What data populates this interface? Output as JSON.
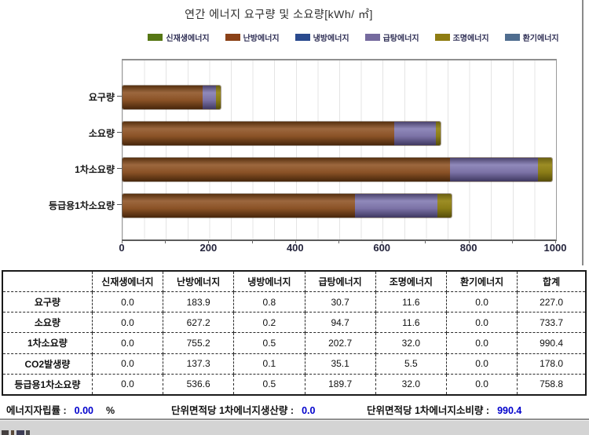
{
  "chart_data": {
    "type": "bar",
    "orientation": "horizontal",
    "title": "연간 에너지 요구량 및 소요량[kWh/ ㎡]",
    "categories": [
      "요구량",
      "소요량",
      "1차소요량",
      "등급용1차소요량"
    ],
    "series": [
      {
        "name": "신재생에너지",
        "color": "#567714",
        "values": [
          0.0,
          0.0,
          0.0,
          0.0
        ]
      },
      {
        "name": "난방에너지",
        "color": "#8b4117",
        "values": [
          183.9,
          627.2,
          755.2,
          536.6
        ]
      },
      {
        "name": "냉방에너지",
        "color": "#2a4a8e",
        "values": [
          0.8,
          0.2,
          0.5,
          0.5
        ]
      },
      {
        "name": "급탕에너지",
        "color": "#756a9e",
        "values": [
          30.7,
          94.7,
          202.7,
          189.7
        ]
      },
      {
        "name": "조명에너지",
        "color": "#8f7d12",
        "values": [
          11.6,
          11.6,
          32.0,
          32.0
        ]
      },
      {
        "name": "환기에너지",
        "color": "#4f6d8f",
        "values": [
          0.0,
          0.0,
          0.0,
          0.0
        ]
      }
    ],
    "xlim": [
      0,
      1000
    ],
    "x_ticks": [
      0,
      200,
      400,
      600,
      800,
      1000
    ],
    "minor_tick_step": 100,
    "grid": true,
    "legend_position": "top"
  },
  "table": {
    "headers": [
      "",
      "신재생에너지",
      "난방에너지",
      "냉방에너지",
      "급탕에너지",
      "조명에너지",
      "환기에너지",
      "합계"
    ],
    "rows": [
      {
        "label": "요구량",
        "values": [
          "0.0",
          "183.9",
          "0.8",
          "30.7",
          "11.6",
          "0.0",
          "227.0"
        ]
      },
      {
        "label": "소요량",
        "values": [
          "0.0",
          "627.2",
          "0.2",
          "94.7",
          "11.6",
          "0.0",
          "733.7"
        ]
      },
      {
        "label": "1차소요량",
        "values": [
          "0.0",
          "755.2",
          "0.5",
          "202.7",
          "32.0",
          "0.0",
          "990.4"
        ]
      },
      {
        "label": "CO2발생량",
        "values": [
          "0.0",
          "137.3",
          "0.1",
          "35.1",
          "5.5",
          "0.0",
          "178.0"
        ]
      },
      {
        "label": "등급용1차소요량",
        "values": [
          "0.0",
          "536.6",
          "0.5",
          "189.7",
          "32.0",
          "0.0",
          "758.8"
        ]
      }
    ]
  },
  "stats": {
    "independence_label": "에너지자립률 :",
    "independence_value": "0.00",
    "independence_unit": "%",
    "production_label": "단위면적당 1차에너지생산량 :",
    "production_value": "0.0",
    "consumption_label": "단위면적당 1차에너지소비량 :",
    "consumption_value": "990.4"
  },
  "colors": {
    "stat_value_text": "#0000cc",
    "legend_text": "#2f2f55",
    "gridline": "#e4e4e4",
    "bottom_strip": "#d4d4d4"
  }
}
